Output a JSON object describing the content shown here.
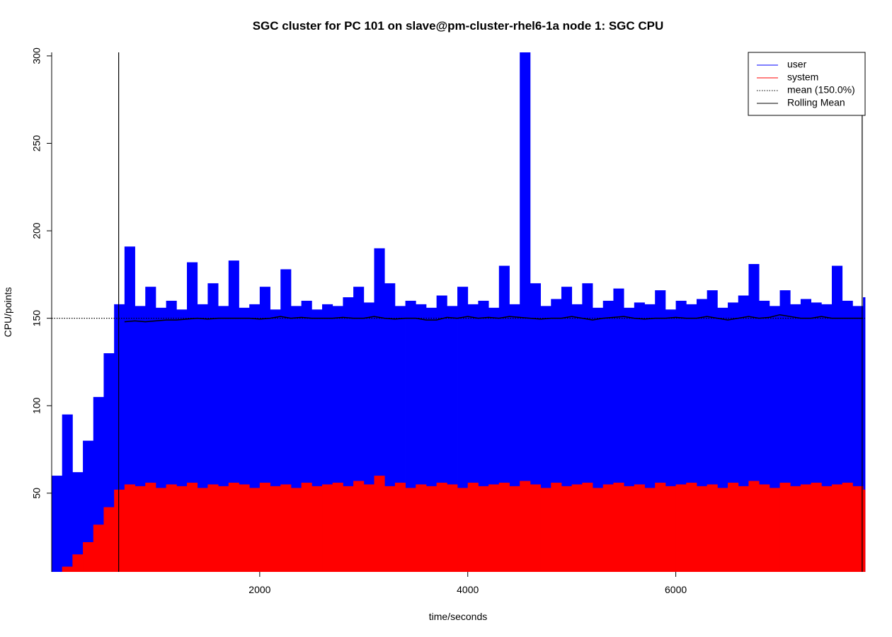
{
  "chart_data": {
    "type": "area",
    "title": "SGC cluster for PC 101 on slave@pm-cluster-rhel6-1a node 1: SGC CPU",
    "x_label": "time/seconds",
    "y_label": "CPU/points",
    "xlim": [
      0,
      7820
    ],
    "ylim": [
      5,
      302
    ],
    "xticks": [
      2000,
      4000,
      6000
    ],
    "yticks": [
      50,
      100,
      150,
      200,
      250,
      300
    ],
    "x": [
      0,
      100,
      200,
      300,
      400,
      500,
      600,
      700,
      800,
      900,
      1000,
      1100,
      1200,
      1300,
      1400,
      1500,
      1600,
      1700,
      1800,
      1900,
      2000,
      2100,
      2200,
      2300,
      2400,
      2500,
      2600,
      2700,
      2800,
      2900,
      3000,
      3100,
      3200,
      3300,
      3400,
      3500,
      3600,
      3700,
      3800,
      3900,
      4000,
      4100,
      4200,
      4300,
      4400,
      4500,
      4600,
      4700,
      4800,
      4900,
      5000,
      5100,
      5200,
      5300,
      5400,
      5500,
      5600,
      5700,
      5800,
      5900,
      6000,
      6100,
      6200,
      6300,
      6400,
      6500,
      6600,
      6700,
      6800,
      6900,
      7000,
      7100,
      7200,
      7300,
      7400,
      7500,
      7600,
      7700,
      7800
    ],
    "series": [
      {
        "name": "user",
        "color": "#0000ff",
        "values": [
          60,
          95,
          62,
          80,
          105,
          130,
          158,
          191,
          157,
          168,
          156,
          160,
          155,
          182,
          158,
          170,
          157,
          183,
          156,
          158,
          168,
          155,
          178,
          157,
          160,
          155,
          158,
          157,
          162,
          168,
          159,
          190,
          170,
          157,
          160,
          158,
          156,
          163,
          157,
          168,
          158,
          160,
          156,
          180,
          158,
          302,
          170,
          157,
          161,
          168,
          158,
          170,
          156,
          160,
          167,
          156,
          159,
          158,
          166,
          155,
          160,
          158,
          161,
          166,
          156,
          159,
          163,
          181,
          160,
          157,
          166,
          158,
          161,
          159,
          158,
          180,
          160,
          157,
          162
        ]
      },
      {
        "name": "system",
        "color": "#ff0000",
        "values": [
          5,
          8,
          15,
          22,
          32,
          42,
          52,
          55,
          54,
          56,
          53,
          55,
          54,
          56,
          53,
          55,
          54,
          56,
          55,
          53,
          56,
          54,
          55,
          53,
          56,
          54,
          55,
          56,
          54,
          57,
          55,
          60,
          54,
          56,
          53,
          55,
          54,
          56,
          55,
          53,
          56,
          54,
          55,
          56,
          54,
          57,
          55,
          53,
          56,
          54,
          55,
          56,
          53,
          55,
          56,
          54,
          55,
          53,
          56,
          54,
          55,
          56,
          54,
          55,
          53,
          56,
          54,
          57,
          55,
          53,
          56,
          54,
          55,
          56,
          54,
          55,
          56,
          54,
          52
        ]
      },
      {
        "name": "Rolling Mean",
        "color": "#000000",
        "values": [
          null,
          null,
          null,
          null,
          null,
          null,
          null,
          148,
          148.5,
          148,
          148.5,
          149,
          149,
          149.5,
          150,
          149.5,
          150,
          150,
          150,
          150,
          149.5,
          150,
          151,
          150,
          150.5,
          150,
          150,
          150,
          150.5,
          150,
          150,
          151,
          150,
          149.5,
          150,
          150,
          149,
          149,
          150.5,
          150,
          151,
          150,
          150.5,
          150,
          151,
          150.5,
          150,
          149.5,
          150,
          150,
          151,
          150,
          149,
          150,
          150.5,
          151,
          150,
          149.5,
          150,
          150,
          150.5,
          150,
          150,
          151,
          150,
          149,
          150,
          151,
          150,
          150.5,
          152,
          151,
          150,
          150,
          151,
          150,
          150,
          150,
          150
        ]
      }
    ],
    "mean_line": {
      "name": "mean (150.0%)",
      "value": 150,
      "color": "#000000",
      "style": "dotted"
    },
    "vlines": [
      644,
      7792
    ],
    "legend": "top-right"
  }
}
